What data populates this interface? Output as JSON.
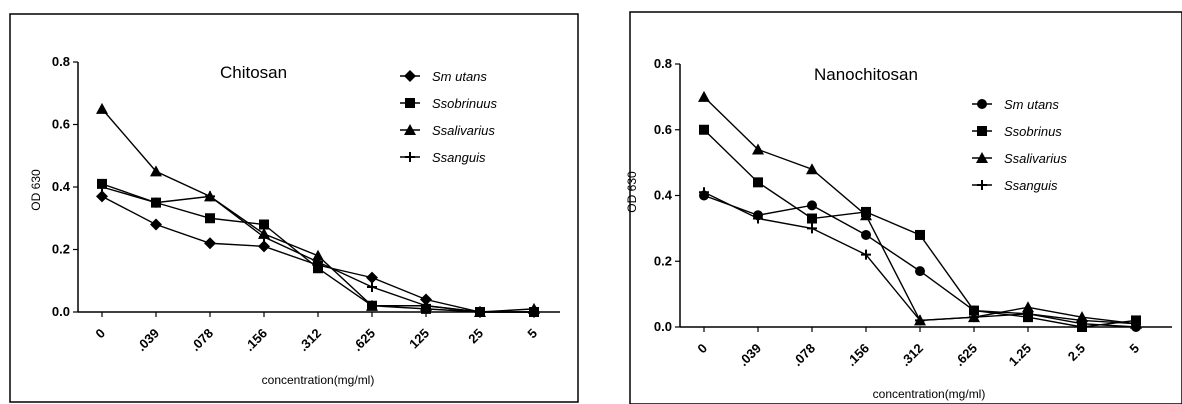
{
  "chart_data": [
    {
      "type": "line",
      "title": "Chitosan",
      "xlabel": "concentration(mg/ml)",
      "ylabel": "OD 630",
      "categories": [
        "0",
        ".039",
        ".078",
        ".156",
        ".312",
        ".625",
        "125",
        "25",
        "5"
      ],
      "yticks": [
        "0.0",
        "0.2",
        "0.4",
        "0.6",
        "0.8"
      ],
      "ylim": [
        0,
        0.8
      ],
      "legend_position": "top-right",
      "grid": false,
      "series": [
        {
          "name": "Sm utans",
          "marker": "diamond",
          "values": [
            0.37,
            0.28,
            0.22,
            0.21,
            0.15,
            0.11,
            0.04,
            0.0,
            0.0
          ]
        },
        {
          "name": "Ssobrinuus",
          "marker": "square",
          "values": [
            0.41,
            0.35,
            0.3,
            0.28,
            0.14,
            0.02,
            0.01,
            0.0,
            0.0
          ]
        },
        {
          "name": "Ssalivarius",
          "marker": "triangle",
          "values": [
            0.65,
            0.45,
            0.37,
            0.25,
            0.18,
            0.02,
            0.02,
            0.0,
            0.01
          ]
        },
        {
          "name": "Ssanguis",
          "marker": "plus",
          "values": [
            0.4,
            0.35,
            0.37,
            0.24,
            0.16,
            0.08,
            0.02,
            0.0,
            0.0
          ]
        }
      ]
    },
    {
      "type": "line",
      "title": "Nanochitosan",
      "xlabel": "concentration(mg/ml)",
      "ylabel": "OD 630",
      "categories": [
        "0",
        ".039",
        ".078",
        ".156",
        ".312",
        ".625",
        "1.25",
        "2.5",
        "5"
      ],
      "yticks": [
        "0.0",
        "0.2",
        "0.4",
        "0.6",
        "0.8"
      ],
      "ylim": [
        0,
        0.8
      ],
      "legend_position": "top-right",
      "grid": false,
      "series": [
        {
          "name": "Sm utans",
          "marker": "circle",
          "values": [
            0.4,
            0.34,
            0.37,
            0.28,
            0.17,
            0.05,
            0.04,
            0.01,
            0.0
          ]
        },
        {
          "name": "Ssobrinus",
          "marker": "square",
          "values": [
            0.6,
            0.44,
            0.33,
            0.35,
            0.28,
            0.05,
            0.03,
            0.0,
            0.02
          ]
        },
        {
          "name": "Ssalivarius",
          "marker": "triangle",
          "values": [
            0.7,
            0.54,
            0.48,
            0.34,
            0.02,
            0.03,
            0.06,
            0.03,
            0.01
          ]
        },
        {
          "name": "Ssanguis",
          "marker": "plus",
          "values": [
            0.41,
            0.33,
            0.3,
            0.22,
            0.02,
            0.03,
            0.04,
            0.02,
            0.01
          ]
        }
      ]
    }
  ]
}
